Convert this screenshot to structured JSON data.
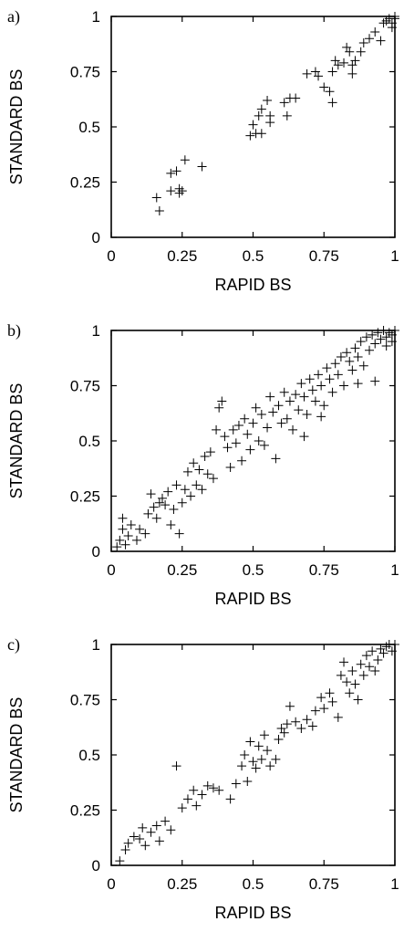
{
  "chart_data": [
    {
      "type": "scatter",
      "panel_label": "a)",
      "xlabel": "RAPID BS",
      "ylabel": "STANDARD BS",
      "xlim": [
        0,
        1
      ],
      "ylim": [
        0,
        1
      ],
      "xticks": [
        "0",
        "0.25",
        "0.5",
        "0.75",
        "1"
      ],
      "yticks": [
        "0",
        "0.25",
        "0.5",
        "0.75",
        "1"
      ],
      "marker": "+",
      "grid": false,
      "points": [
        [
          0.16,
          0.18
        ],
        [
          0.17,
          0.12
        ],
        [
          0.21,
          0.21
        ],
        [
          0.24,
          0.22
        ],
        [
          0.24,
          0.2
        ],
        [
          0.25,
          0.21
        ],
        [
          0.21,
          0.29
        ],
        [
          0.23,
          0.3
        ],
        [
          0.26,
          0.35
        ],
        [
          0.32,
          0.32
        ],
        [
          0.49,
          0.46
        ],
        [
          0.5,
          0.51
        ],
        [
          0.52,
          0.55
        ],
        [
          0.53,
          0.47
        ],
        [
          0.53,
          0.58
        ],
        [
          0.55,
          0.62
        ],
        [
          0.56,
          0.52
        ],
        [
          0.56,
          0.55
        ],
        [
          0.51,
          0.47
        ],
        [
          0.61,
          0.61
        ],
        [
          0.63,
          0.63
        ],
        [
          0.65,
          0.63
        ],
        [
          0.62,
          0.55
        ],
        [
          0.69,
          0.74
        ],
        [
          0.72,
          0.75
        ],
        [
          0.73,
          0.73
        ],
        [
          0.75,
          0.68
        ],
        [
          0.77,
          0.66
        ],
        [
          0.78,
          0.61
        ],
        [
          0.78,
          0.75
        ],
        [
          0.79,
          0.8
        ],
        [
          0.8,
          0.78
        ],
        [
          0.82,
          0.79
        ],
        [
          0.83,
          0.86
        ],
        [
          0.84,
          0.84
        ],
        [
          0.85,
          0.78
        ],
        [
          0.85,
          0.74
        ],
        [
          0.86,
          0.8
        ],
        [
          0.88,
          0.84
        ],
        [
          0.89,
          0.88
        ],
        [
          0.91,
          0.9
        ],
        [
          0.93,
          0.93
        ],
        [
          0.95,
          0.89
        ],
        [
          0.96,
          0.97
        ],
        [
          0.97,
          0.98
        ],
        [
          0.98,
          0.99
        ],
        [
          0.99,
          0.97
        ],
        [
          1.0,
          0.99
        ],
        [
          0.99,
          0.95
        ],
        [
          1.0,
          1.0
        ]
      ]
    },
    {
      "type": "scatter",
      "panel_label": "b)",
      "xlabel": "RAPID BS",
      "ylabel": "STANDARD BS",
      "xlim": [
        0,
        1
      ],
      "ylim": [
        0,
        1
      ],
      "xticks": [
        "0",
        "0.25",
        "0.5",
        "0.75",
        "1"
      ],
      "yticks": [
        "0",
        "0.25",
        "0.5",
        "0.75",
        "1"
      ],
      "marker": "+",
      "grid": false,
      "points": [
        [
          0.02,
          0.02
        ],
        [
          0.03,
          0.05
        ],
        [
          0.04,
          0.1
        ],
        [
          0.04,
          0.15
        ],
        [
          0.05,
          0.03
        ],
        [
          0.06,
          0.07
        ],
        [
          0.07,
          0.12
        ],
        [
          0.09,
          0.05
        ],
        [
          0.1,
          0.1
        ],
        [
          0.12,
          0.08
        ],
        [
          0.13,
          0.17
        ],
        [
          0.14,
          0.26
        ],
        [
          0.15,
          0.2
        ],
        [
          0.16,
          0.15
        ],
        [
          0.17,
          0.22
        ],
        [
          0.18,
          0.24
        ],
        [
          0.19,
          0.21
        ],
        [
          0.2,
          0.27
        ],
        [
          0.21,
          0.12
        ],
        [
          0.22,
          0.19
        ],
        [
          0.23,
          0.3
        ],
        [
          0.24,
          0.08
        ],
        [
          0.25,
          0.22
        ],
        [
          0.26,
          0.28
        ],
        [
          0.27,
          0.36
        ],
        [
          0.28,
          0.25
        ],
        [
          0.29,
          0.4
        ],
        [
          0.3,
          0.3
        ],
        [
          0.31,
          0.37
        ],
        [
          0.32,
          0.28
        ],
        [
          0.33,
          0.43
        ],
        [
          0.34,
          0.35
        ],
        [
          0.35,
          0.45
        ],
        [
          0.36,
          0.33
        ],
        [
          0.37,
          0.55
        ],
        [
          0.38,
          0.65
        ],
        [
          0.39,
          0.68
        ],
        [
          0.4,
          0.52
        ],
        [
          0.41,
          0.47
        ],
        [
          0.42,
          0.38
        ],
        [
          0.43,
          0.55
        ],
        [
          0.44,
          0.49
        ],
        [
          0.45,
          0.57
        ],
        [
          0.46,
          0.41
        ],
        [
          0.47,
          0.6
        ],
        [
          0.48,
          0.53
        ],
        [
          0.49,
          0.46
        ],
        [
          0.5,
          0.58
        ],
        [
          0.51,
          0.65
        ],
        [
          0.52,
          0.5
        ],
        [
          0.53,
          0.62
        ],
        [
          0.54,
          0.48
        ],
        [
          0.55,
          0.56
        ],
        [
          0.56,
          0.7
        ],
        [
          0.57,
          0.63
        ],
        [
          0.58,
          0.42
        ],
        [
          0.59,
          0.66
        ],
        [
          0.6,
          0.58
        ],
        [
          0.61,
          0.72
        ],
        [
          0.62,
          0.6
        ],
        [
          0.63,
          0.68
        ],
        [
          0.64,
          0.55
        ],
        [
          0.65,
          0.71
        ],
        [
          0.66,
          0.64
        ],
        [
          0.67,
          0.76
        ],
        [
          0.68,
          0.7
        ],
        [
          0.69,
          0.62
        ],
        [
          0.7,
          0.78
        ],
        [
          0.71,
          0.73
        ],
        [
          0.72,
          0.68
        ],
        [
          0.73,
          0.8
        ],
        [
          0.74,
          0.75
        ],
        [
          0.75,
          0.66
        ],
        [
          0.76,
          0.83
        ],
        [
          0.77,
          0.78
        ],
        [
          0.78,
          0.72
        ],
        [
          0.79,
          0.85
        ],
        [
          0.8,
          0.8
        ],
        [
          0.81,
          0.88
        ],
        [
          0.82,
          0.75
        ],
        [
          0.83,
          0.9
        ],
        [
          0.84,
          0.86
        ],
        [
          0.85,
          0.82
        ],
        [
          0.86,
          0.92
        ],
        [
          0.87,
          0.88
        ],
        [
          0.88,
          0.95
        ],
        [
          0.89,
          0.84
        ],
        [
          0.9,
          0.97
        ],
        [
          0.91,
          0.91
        ],
        [
          0.92,
          0.98
        ],
        [
          0.93,
          0.94
        ],
        [
          0.94,
          0.99
        ],
        [
          0.95,
          0.96
        ],
        [
          0.96,
          1.0
        ],
        [
          0.97,
          0.97
        ],
        [
          0.98,
          0.99
        ],
        [
          0.99,
          0.98
        ],
        [
          1.0,
          1.0
        ],
        [
          0.97,
          0.93
        ],
        [
          0.99,
          0.95
        ],
        [
          0.68,
          0.52
        ],
        [
          0.74,
          0.61
        ],
        [
          0.87,
          0.76
        ],
        [
          0.93,
          0.77
        ]
      ]
    },
    {
      "type": "scatter",
      "panel_label": "c)",
      "xlabel": "RAPID BS",
      "ylabel": "STANDARD BS",
      "xlim": [
        0,
        1
      ],
      "ylim": [
        0,
        1
      ],
      "xticks": [
        "0",
        "0.25",
        "0.5",
        "0.75",
        "1"
      ],
      "yticks": [
        "0",
        "0.25",
        "0.5",
        "0.75",
        "1"
      ],
      "marker": "+",
      "grid": false,
      "points": [
        [
          0.03,
          0.02
        ],
        [
          0.05,
          0.07
        ],
        [
          0.06,
          0.1
        ],
        [
          0.08,
          0.13
        ],
        [
          0.1,
          0.12
        ],
        [
          0.11,
          0.17
        ],
        [
          0.12,
          0.09
        ],
        [
          0.14,
          0.15
        ],
        [
          0.16,
          0.18
        ],
        [
          0.17,
          0.11
        ],
        [
          0.19,
          0.2
        ],
        [
          0.21,
          0.16
        ],
        [
          0.23,
          0.45
        ],
        [
          0.25,
          0.26
        ],
        [
          0.27,
          0.3
        ],
        [
          0.29,
          0.34
        ],
        [
          0.3,
          0.27
        ],
        [
          0.32,
          0.32
        ],
        [
          0.34,
          0.36
        ],
        [
          0.36,
          0.35
        ],
        [
          0.38,
          0.34
        ],
        [
          0.42,
          0.3
        ],
        [
          0.44,
          0.37
        ],
        [
          0.46,
          0.45
        ],
        [
          0.47,
          0.5
        ],
        [
          0.48,
          0.38
        ],
        [
          0.49,
          0.56
        ],
        [
          0.5,
          0.47
        ],
        [
          0.51,
          0.44
        ],
        [
          0.52,
          0.54
        ],
        [
          0.53,
          0.48
        ],
        [
          0.54,
          0.59
        ],
        [
          0.55,
          0.52
        ],
        [
          0.56,
          0.45
        ],
        [
          0.58,
          0.48
        ],
        [
          0.59,
          0.57
        ],
        [
          0.6,
          0.62
        ],
        [
          0.61,
          0.6
        ],
        [
          0.62,
          0.64
        ],
        [
          0.63,
          0.72
        ],
        [
          0.65,
          0.65
        ],
        [
          0.67,
          0.62
        ],
        [
          0.69,
          0.66
        ],
        [
          0.71,
          0.63
        ],
        [
          0.72,
          0.7
        ],
        [
          0.74,
          0.76
        ],
        [
          0.75,
          0.71
        ],
        [
          0.77,
          0.78
        ],
        [
          0.78,
          0.74
        ],
        [
          0.8,
          0.67
        ],
        [
          0.81,
          0.86
        ],
        [
          0.82,
          0.92
        ],
        [
          0.83,
          0.83
        ],
        [
          0.84,
          0.78
        ],
        [
          0.85,
          0.88
        ],
        [
          0.86,
          0.82
        ],
        [
          0.87,
          0.75
        ],
        [
          0.88,
          0.91
        ],
        [
          0.89,
          0.86
        ],
        [
          0.9,
          0.95
        ],
        [
          0.91,
          0.9
        ],
        [
          0.92,
          0.97
        ],
        [
          0.93,
          0.88
        ],
        [
          0.94,
          0.93
        ],
        [
          0.95,
          0.98
        ],
        [
          0.96,
          0.96
        ],
        [
          0.97,
          0.99
        ],
        [
          0.98,
          1.0
        ],
        [
          0.99,
          0.97
        ],
        [
          1.0,
          1.0
        ]
      ]
    }
  ]
}
